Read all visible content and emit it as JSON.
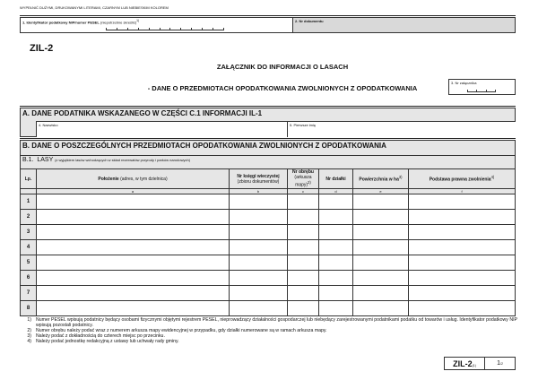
{
  "header_note": "WYPEŁNIĆ DUŻYMI, DRUKOWANYMI LITERAMI, CZARNYM LUB NIEBIESKIM KOLOREM",
  "field1": {
    "label": "1. Identyfikator podatkowy NIP/numer PESEL",
    "hint": "(niepotrzebne skreślić)",
    "sup": "1)"
  },
  "field2": {
    "label": "2. Nr dokumentu"
  },
  "form_code": "ZIL-2",
  "title1": "ZAŁĄCZNIK DO INFORMACJI O LASACH",
  "title2": "- DANE O PRZEDMIOTACH OPODATKOWANIA ZWOLNIONYCH Z OPODATKOWANIA",
  "field3": {
    "label": "3. Nr załącznika"
  },
  "sectionA": {
    "title": "A.  DANE PODATNIKA WSKAZANEGO W CZĘŚCI C.1 INFORMACJI IL-1",
    "field4": "4. Nazwisko",
    "field5": "5. Pierwsze imię"
  },
  "sectionB": {
    "title": "B.  DANE O POSZCZEGÓLNYCH PRZEDMIOTACH OPODATKOWANIA ZWOLNIONYCH Z OPODATKOWANIA",
    "b1_code": "B.1.",
    "b1_title": "LASY",
    "b1_note": "(z wyjątkiem lasów wchodzących w skład rezerwatów przyrody i parków narodowych)"
  },
  "table": {
    "headers": [
      {
        "bold": "Lp.",
        "rest": ""
      },
      {
        "bold": "Położenie",
        "rest": " (adres, w tym dzielnica)"
      },
      {
        "bold": "Nr księgi wieczystej",
        "rest": "(zbioru dokumentów)"
      },
      {
        "bold": "Nr obrębu",
        "rest": "(arkusza mapy)",
        "sup": "2)"
      },
      {
        "bold": "Nr działki",
        "rest": ""
      },
      {
        "bold": "Powierzchnia w ha",
        "rest": "",
        "sup": "3)"
      },
      {
        "bold": "Podstawa prawna zwolnienia",
        "rest": "",
        "sup": "4)"
      }
    ],
    "letters": [
      "a",
      "b",
      "c",
      "d",
      "e",
      "f"
    ],
    "rows": [
      "1",
      "2",
      "3",
      "4",
      "5",
      "6",
      "7",
      "8"
    ]
  },
  "footnotes": [
    {
      "n": "1)",
      "text": "Numer PESEL wpisują podatnicy będący osobami fizycznymi objętymi rejestrem PESEL, nieprowadzący działalności gospodarczej lub niebędący zarejestrowanymi podatnikami podatku od towarów i usług. Identyfikator podatkowy NIP wpisują pozostali podatnicy."
    },
    {
      "n": "2)",
      "text": "Numer obrębu należy podać wraz z numerem arkusza mapy ewidencyjnej w przypadku, gdy działki numerowane są w ramach arkusza mapy."
    },
    {
      "n": "3)",
      "text": "Należy podać z dokładnością do czterech miejsc po przecinku."
    },
    {
      "n": "4)",
      "text": "Należy podać jednostkę redakcyjną z ustawy lub uchwały rady gminy."
    }
  ],
  "footer": {
    "code": "ZIL-2",
    "version": "(1)",
    "page": "1",
    "of": "/2"
  }
}
